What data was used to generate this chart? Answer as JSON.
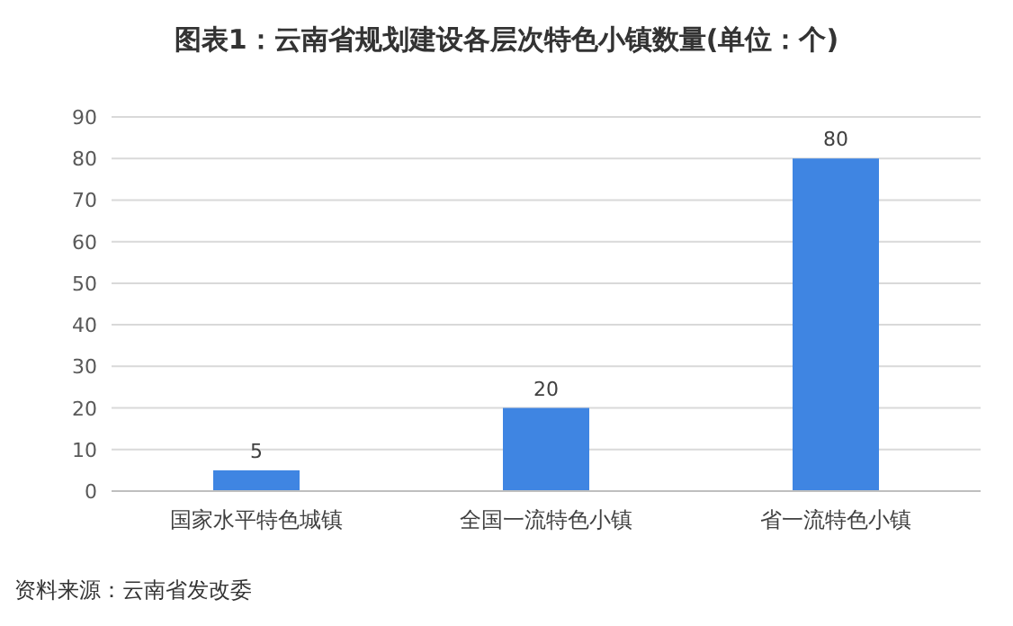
{
  "chart_data": {
    "type": "bar",
    "title": "图表1：云南省规划建设各层次特色小镇数量(单位：个)",
    "categories": [
      "国家水平特色城镇",
      "全国一流特色小镇",
      "省一流特色小镇"
    ],
    "values": [
      5,
      20,
      80
    ],
    "color": "#3f85e2",
    "ylim": [
      0,
      90
    ],
    "yticks": [
      0,
      10,
      20,
      30,
      40,
      50,
      60,
      70,
      80,
      90
    ],
    "grid": "y",
    "data_labels": true,
    "annotations": [
      "资料来源：云南省发改委"
    ]
  }
}
